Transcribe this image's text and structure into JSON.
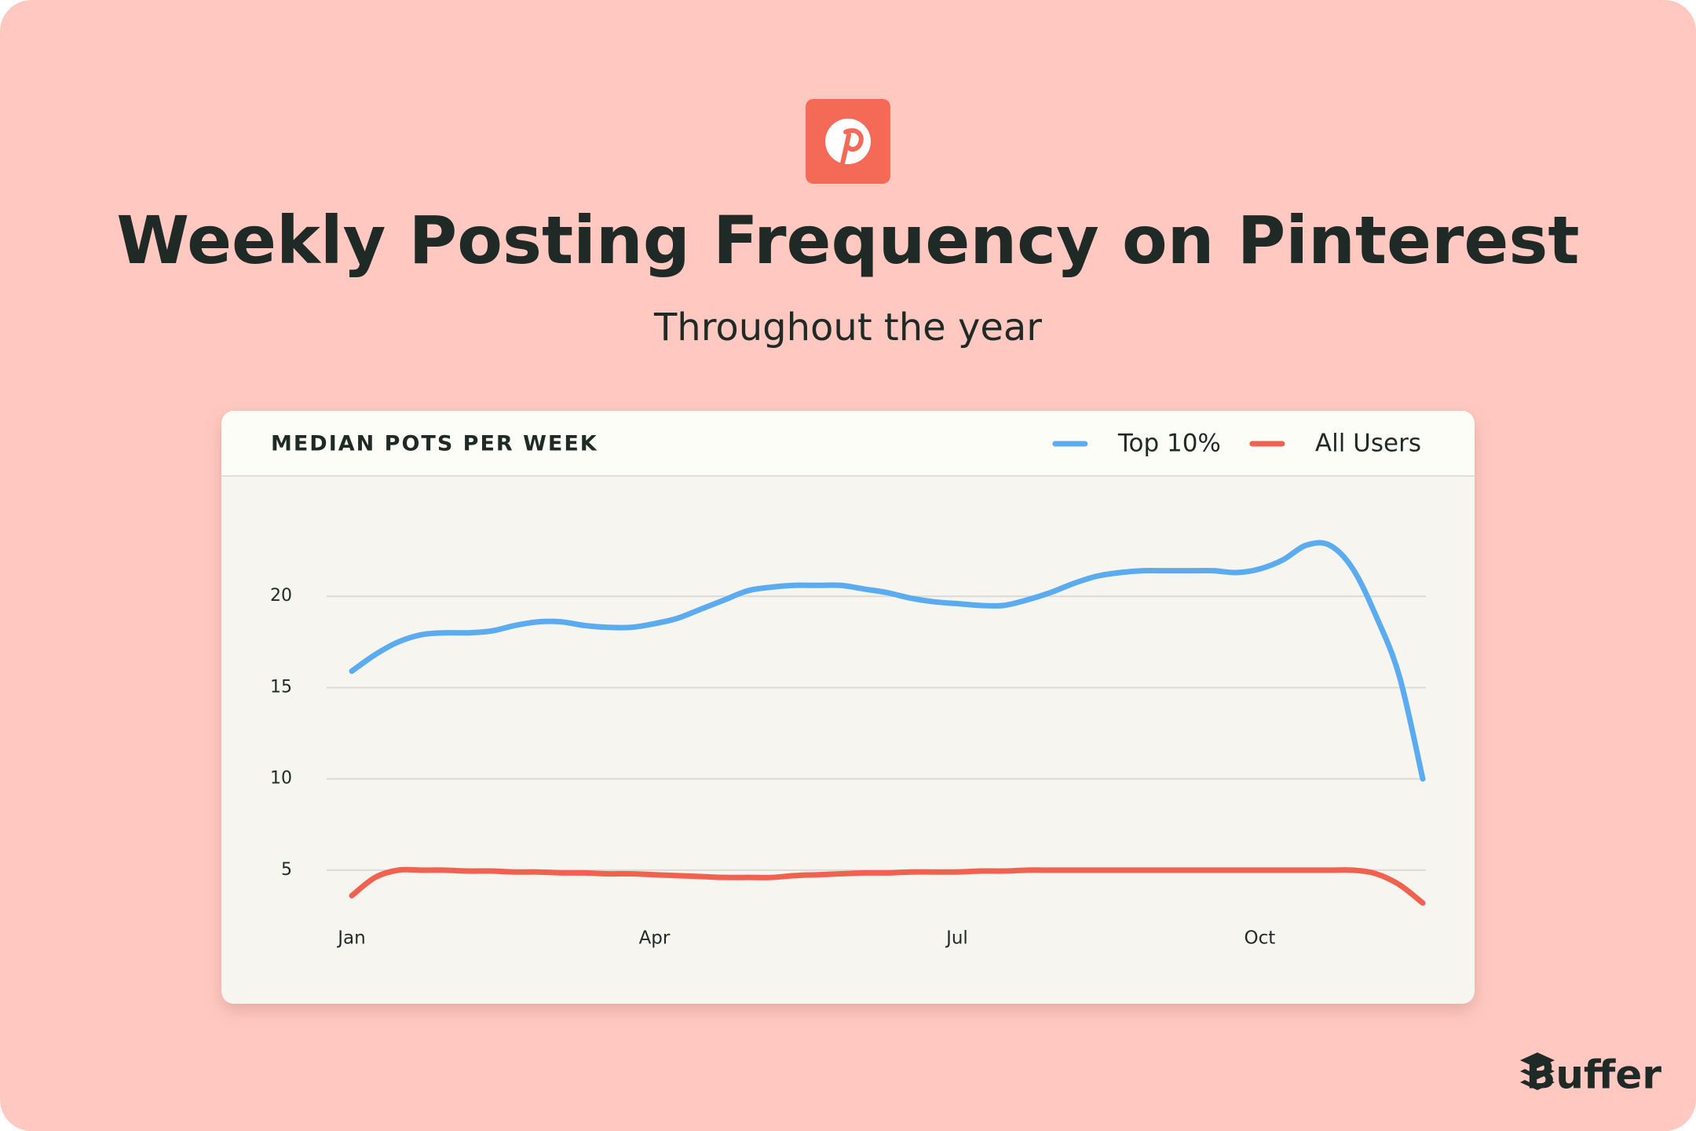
{
  "chart_data": {
    "type": "line",
    "title": "Weekly Posting Frequency on Pinterest",
    "subtitle": "Throughout the year",
    "panel_title": "MEDIAN POTS PER WEEK",
    "categories": [
      "Jan",
      null,
      null,
      null,
      null,
      null,
      null,
      null,
      null,
      null,
      null,
      null,
      null,
      "Apr",
      null,
      null,
      null,
      null,
      null,
      null,
      null,
      null,
      null,
      null,
      null,
      null,
      "Jul",
      null,
      null,
      null,
      null,
      null,
      null,
      null,
      null,
      null,
      null,
      null,
      null,
      "Oct",
      null,
      null,
      null,
      null,
      null,
      null,
      null
    ],
    "series": [
      {
        "name": "Top 10%",
        "color": "#5aabef",
        "values": [
          15.9,
          16.8,
          17.5,
          17.9,
          18.0,
          18.0,
          18.1,
          18.4,
          18.6,
          18.6,
          18.4,
          18.3,
          18.3,
          18.5,
          18.8,
          19.3,
          19.8,
          20.3,
          20.5,
          20.6,
          20.6,
          20.6,
          20.4,
          20.2,
          19.9,
          19.7,
          19.6,
          19.5,
          19.5,
          19.8,
          20.2,
          20.7,
          21.1,
          21.3,
          21.4,
          21.4,
          21.4,
          21.4,
          21.3,
          21.5,
          22.0,
          22.8,
          22.8,
          21.5,
          18.9,
          15.6,
          10
        ]
      },
      {
        "name": "All Users",
        "color": "#f0624f",
        "values": [
          3.6,
          4.6,
          5.0,
          5.0,
          5.0,
          4.95,
          4.95,
          4.9,
          4.9,
          4.85,
          4.85,
          4.8,
          4.8,
          4.75,
          4.7,
          4.65,
          4.6,
          4.6,
          4.6,
          4.7,
          4.75,
          4.8,
          4.85,
          4.85,
          4.9,
          4.9,
          4.9,
          4.95,
          4.95,
          5,
          5,
          5,
          5,
          5,
          5,
          5,
          5,
          5,
          5,
          5,
          5,
          5,
          5,
          5,
          4.8,
          4.2,
          3.2
        ]
      }
    ],
    "ylim": [
      2.5,
      25
    ],
    "yticks": [
      5,
      10,
      15,
      20
    ],
    "grid": true,
    "legend": "top-right"
  },
  "brand": "Buffer"
}
